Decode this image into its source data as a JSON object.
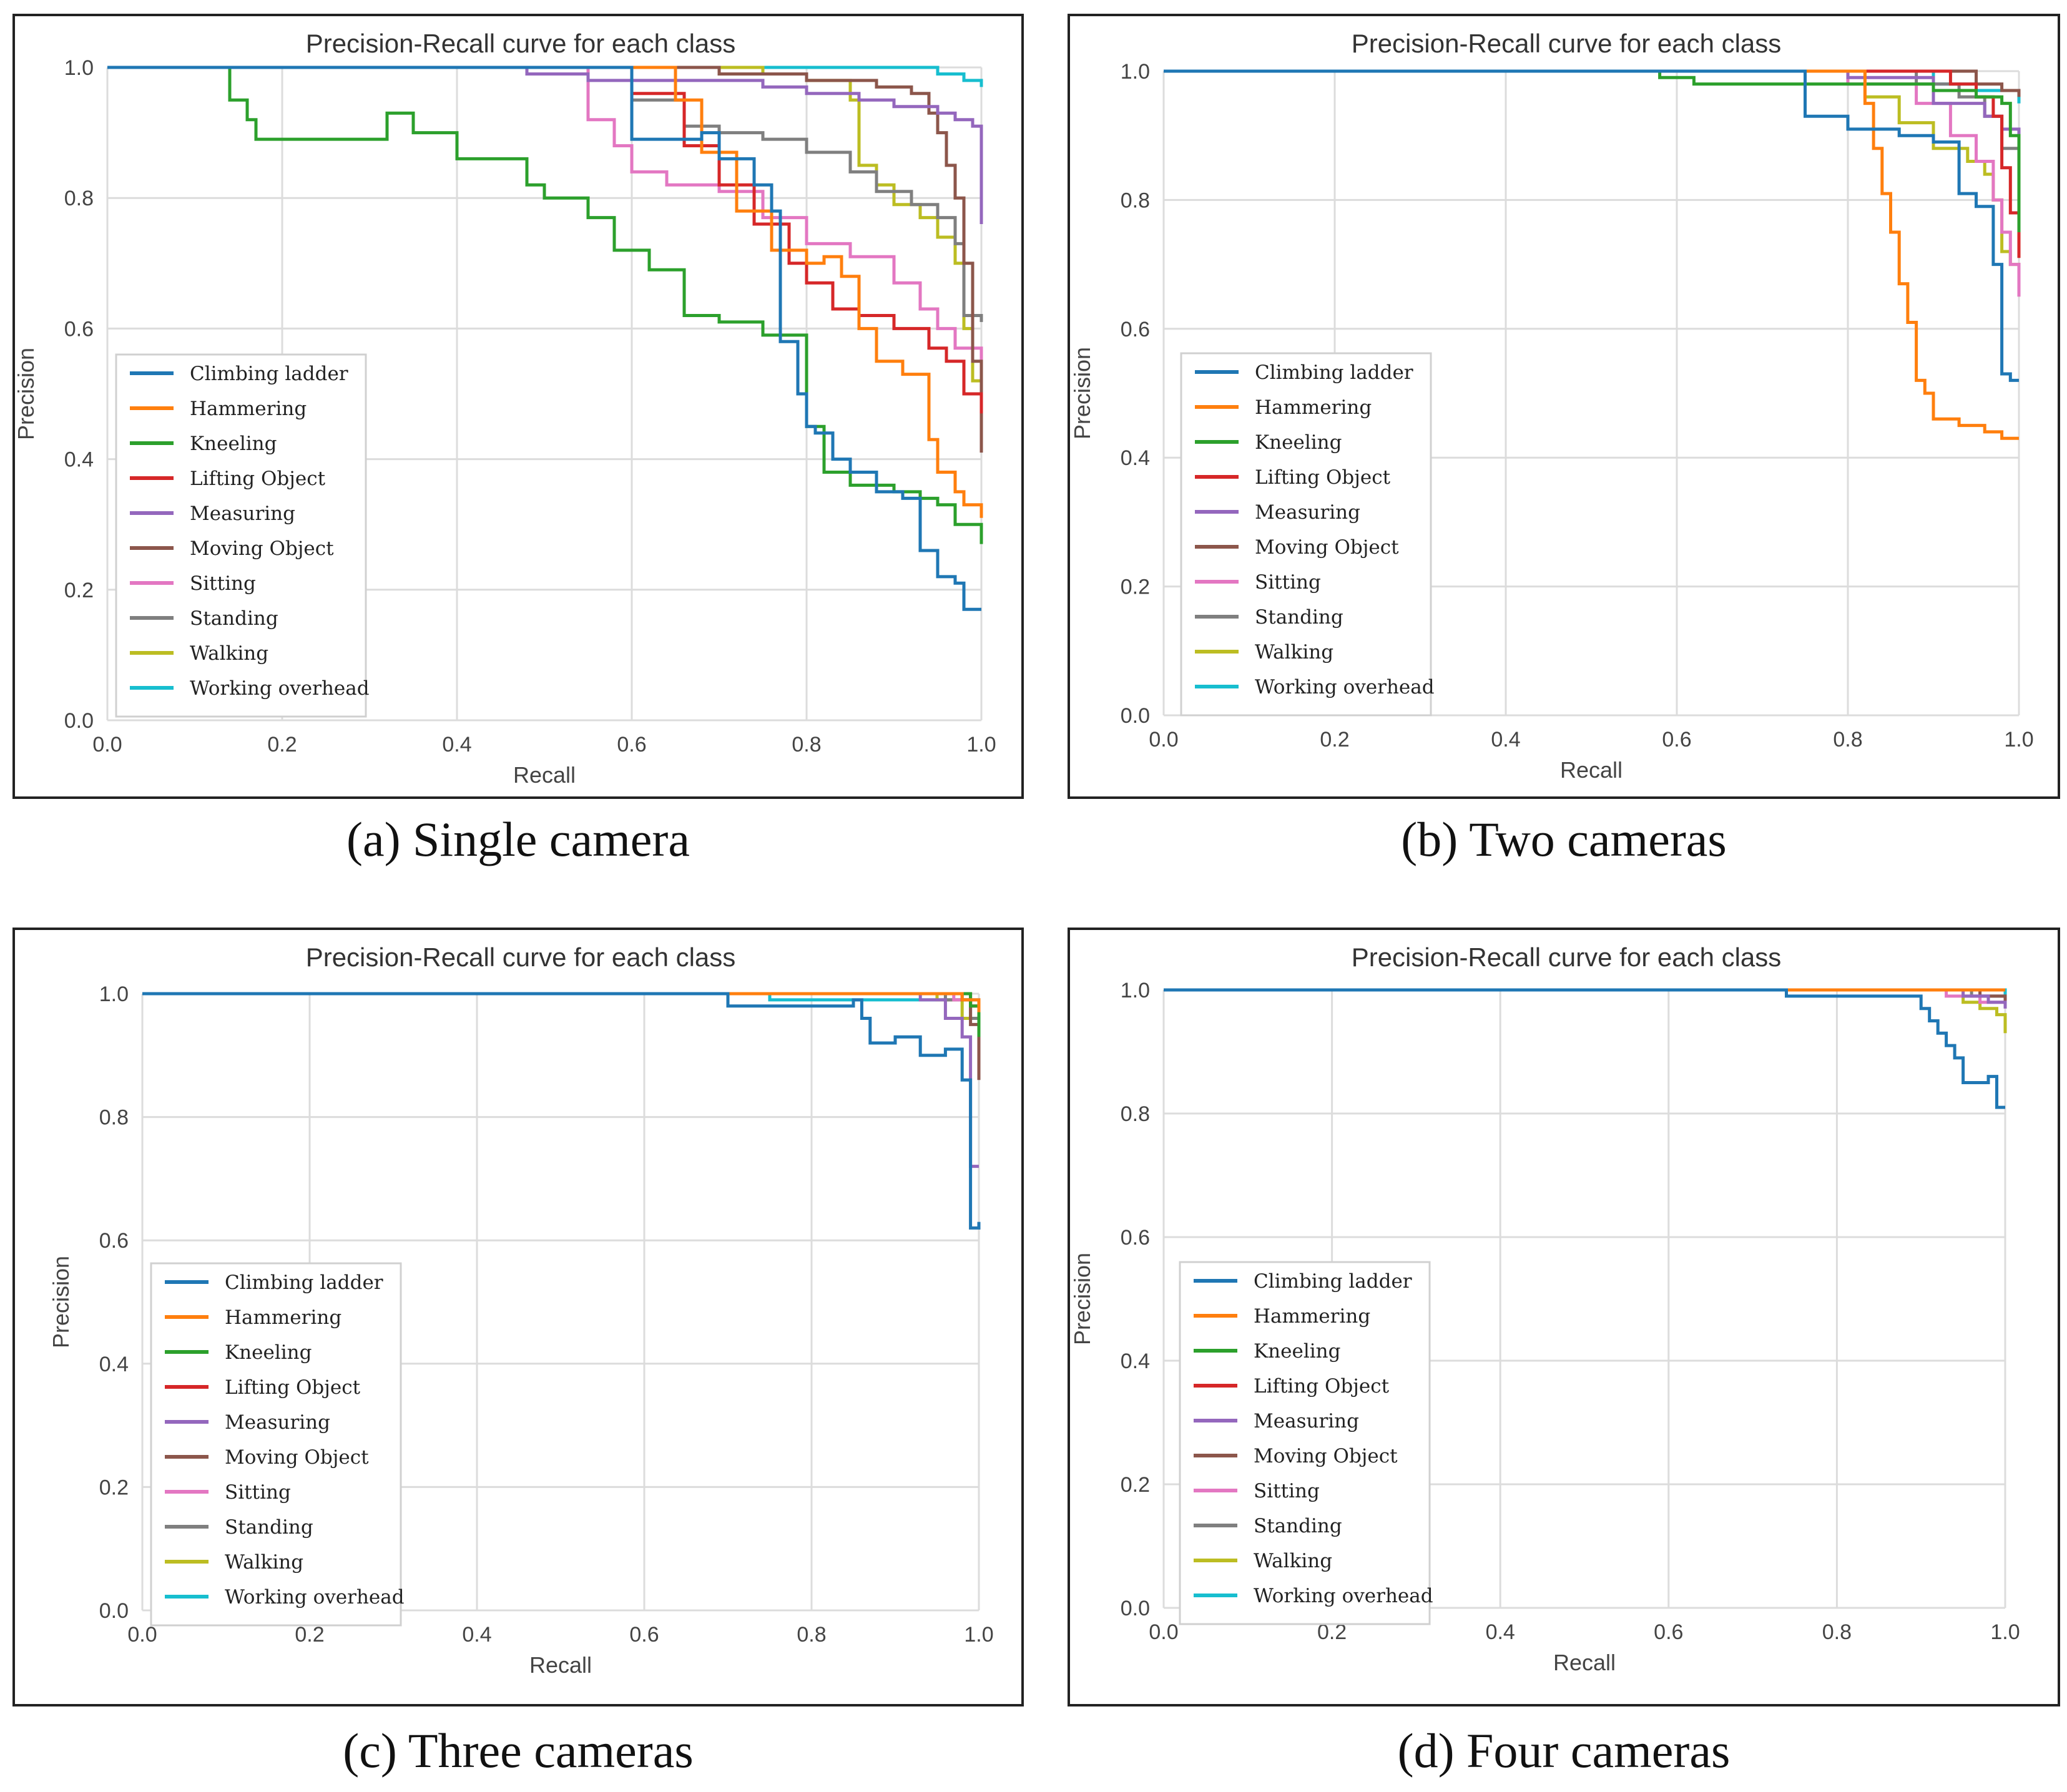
{
  "figure": {
    "captions": [
      "(a) Single camera",
      "(b) Two cameras",
      "(c) Three cameras",
      "(d) Four cameras"
    ]
  },
  "classes": [
    {
      "name": "Climbing ladder",
      "color": "#1f77b4"
    },
    {
      "name": "Hammering",
      "color": "#ff7f0e"
    },
    {
      "name": "Kneeling",
      "color": "#2ca02c"
    },
    {
      "name": "Lifting Object",
      "color": "#d62728"
    },
    {
      "name": "Measuring",
      "color": "#9467bd"
    },
    {
      "name": "Moving Object",
      "color": "#8c564b"
    },
    {
      "name": "Sitting",
      "color": "#e377c2"
    },
    {
      "name": "Standing",
      "color": "#7f7f7f"
    },
    {
      "name": "Walking",
      "color": "#bcbd22"
    },
    {
      "name": "Working overhead",
      "color": "#17becf"
    }
  ],
  "chart_data": [
    {
      "type": "line",
      "title": "Precision-Recall curve for each class",
      "xlabel": "Recall",
      "ylabel": "Precision",
      "xlim": [
        0,
        1
      ],
      "ylim": [
        0,
        1
      ],
      "xticks": [
        "0.0",
        "0.2",
        "0.4",
        "0.6",
        "0.8",
        "1.0"
      ],
      "yticks": [
        "0.0",
        "0.2",
        "0.4",
        "0.6",
        "0.8",
        "1.0"
      ],
      "grid": true,
      "legend": "center-left",
      "series": [
        {
          "name": "Climbing ladder",
          "x": [
            0,
            0.58,
            0.6,
            0.68,
            0.7,
            0.74,
            0.76,
            0.77,
            0.79,
            0.8,
            0.81,
            0.83,
            0.85,
            0.88,
            0.91,
            0.93,
            0.95,
            0.97,
            0.98,
            1.0
          ],
          "y": [
            1.0,
            1.0,
            0.89,
            0.9,
            0.86,
            0.82,
            0.78,
            0.58,
            0.5,
            0.45,
            0.44,
            0.4,
            0.38,
            0.35,
            0.34,
            0.26,
            0.22,
            0.21,
            0.17,
            0.17
          ]
        },
        {
          "name": "Hammering",
          "x": [
            0,
            0.64,
            0.65,
            0.68,
            0.72,
            0.76,
            0.8,
            0.82,
            0.84,
            0.86,
            0.88,
            0.91,
            0.94,
            0.95,
            0.97,
            0.98,
            1.0
          ],
          "y": [
            1.0,
            1.0,
            0.95,
            0.87,
            0.78,
            0.72,
            0.7,
            0.71,
            0.68,
            0.6,
            0.55,
            0.53,
            0.43,
            0.38,
            0.35,
            0.33,
            0.31
          ]
        },
        {
          "name": "Kneeling",
          "x": [
            0,
            0.13,
            0.14,
            0.16,
            0.17,
            0.32,
            0.35,
            0.4,
            0.48,
            0.5,
            0.55,
            0.58,
            0.62,
            0.66,
            0.7,
            0.75,
            0.8,
            0.82,
            0.85,
            0.9,
            0.93,
            0.95,
            0.97,
            1.0
          ],
          "y": [
            1.0,
            1.0,
            0.95,
            0.92,
            0.89,
            0.93,
            0.9,
            0.86,
            0.82,
            0.8,
            0.77,
            0.72,
            0.69,
            0.62,
            0.61,
            0.59,
            0.45,
            0.38,
            0.36,
            0.35,
            0.34,
            0.33,
            0.3,
            0.27
          ]
        },
        {
          "name": "Lifting Object",
          "x": [
            0,
            0.56,
            0.6,
            0.66,
            0.7,
            0.74,
            0.78,
            0.8,
            0.83,
            0.86,
            0.9,
            0.94,
            0.96,
            0.98,
            1.0
          ],
          "y": [
            1.0,
            1.0,
            0.96,
            0.88,
            0.82,
            0.76,
            0.7,
            0.67,
            0.63,
            0.62,
            0.6,
            0.57,
            0.55,
            0.5,
            0.47
          ]
        },
        {
          "name": "Measuring",
          "x": [
            0,
            0.48,
            0.55,
            0.7,
            0.75,
            0.8,
            0.86,
            0.9,
            0.95,
            0.97,
            0.99,
            1.0
          ],
          "y": [
            1.0,
            0.99,
            0.98,
            0.98,
            0.97,
            0.96,
            0.95,
            0.94,
            0.93,
            0.92,
            0.91,
            0.76
          ]
        },
        {
          "name": "Moving Object",
          "x": [
            0,
            0.7,
            0.8,
            0.88,
            0.92,
            0.94,
            0.95,
            0.96,
            0.97,
            0.98,
            0.99,
            1.0
          ],
          "y": [
            1.0,
            0.99,
            0.98,
            0.97,
            0.96,
            0.93,
            0.9,
            0.85,
            0.8,
            0.7,
            0.55,
            0.41
          ]
        },
        {
          "name": "Sitting",
          "x": [
            0,
            0.53,
            0.55,
            0.58,
            0.6,
            0.64,
            0.7,
            0.75,
            0.8,
            0.85,
            0.9,
            0.93,
            0.95,
            0.97,
            1.0
          ],
          "y": [
            1.0,
            1.0,
            0.92,
            0.88,
            0.84,
            0.82,
            0.81,
            0.77,
            0.73,
            0.71,
            0.67,
            0.63,
            0.6,
            0.57,
            0.53
          ]
        },
        {
          "name": "Standing",
          "x": [
            0,
            0.5,
            0.6,
            0.66,
            0.7,
            0.75,
            0.8,
            0.85,
            0.88,
            0.92,
            0.95,
            0.97,
            0.98,
            1.0
          ],
          "y": [
            1.0,
            1.0,
            0.95,
            0.91,
            0.9,
            0.89,
            0.87,
            0.84,
            0.81,
            0.79,
            0.77,
            0.73,
            0.62,
            0.61
          ]
        },
        {
          "name": "Walking",
          "x": [
            0,
            0.75,
            0.8,
            0.85,
            0.86,
            0.88,
            0.9,
            0.93,
            0.95,
            0.97,
            0.98,
            0.99,
            1.0
          ],
          "y": [
            1.0,
            0.99,
            0.98,
            0.95,
            0.85,
            0.82,
            0.79,
            0.77,
            0.74,
            0.7,
            0.6,
            0.52,
            0.49
          ]
        },
        {
          "name": "Working overhead",
          "x": [
            0,
            0.9,
            0.95,
            0.98,
            1.0
          ],
          "y": [
            1.0,
            1.0,
            0.99,
            0.98,
            0.97
          ]
        }
      ]
    },
    {
      "type": "line",
      "title": "Precision-Recall curve for each class",
      "xlabel": "Recall",
      "ylabel": "Precision",
      "xlim": [
        0,
        1
      ],
      "ylim": [
        0,
        1
      ],
      "xticks": [
        "0.0",
        "0.2",
        "0.4",
        "0.6",
        "0.8",
        "1.0"
      ],
      "yticks": [
        "0.0",
        "0.2",
        "0.4",
        "0.6",
        "0.8",
        "1.0"
      ],
      "grid": true,
      "legend": "center-left",
      "series": [
        {
          "name": "Climbing ladder",
          "x": [
            0,
            0.73,
            0.75,
            0.8,
            0.86,
            0.9,
            0.93,
            0.95,
            0.97,
            0.98,
            0.99,
            1.0
          ],
          "y": [
            1.0,
            1.0,
            0.93,
            0.91,
            0.9,
            0.89,
            0.81,
            0.79,
            0.7,
            0.53,
            0.52,
            0.52
          ]
        },
        {
          "name": "Hammering",
          "x": [
            0,
            0.81,
            0.82,
            0.83,
            0.84,
            0.85,
            0.86,
            0.87,
            0.88,
            0.89,
            0.9,
            0.93,
            0.96,
            0.98,
            1.0
          ],
          "y": [
            1.0,
            1.0,
            0.95,
            0.88,
            0.81,
            0.75,
            0.67,
            0.61,
            0.52,
            0.5,
            0.46,
            0.45,
            0.44,
            0.43,
            0.43
          ]
        },
        {
          "name": "Kneeling",
          "x": [
            0,
            0.57,
            0.58,
            0.62,
            0.8,
            0.9,
            0.95,
            0.98,
            0.99,
            1.0
          ],
          "y": [
            1.0,
            1.0,
            0.99,
            0.98,
            0.98,
            0.97,
            0.96,
            0.95,
            0.9,
            0.75
          ]
        },
        {
          "name": "Lifting Object",
          "x": [
            0,
            0.86,
            0.92,
            0.95,
            0.97,
            0.98,
            0.99,
            1.0
          ],
          "y": [
            1.0,
            1.0,
            0.98,
            0.96,
            0.93,
            0.85,
            0.78,
            0.71
          ]
        },
        {
          "name": "Measuring",
          "x": [
            0,
            0.8,
            0.9,
            0.96,
            0.98,
            1.0
          ],
          "y": [
            1.0,
            0.99,
            0.95,
            0.93,
            0.91,
            0.89
          ]
        },
        {
          "name": "Moving Object",
          "x": [
            0,
            0.88,
            0.95,
            0.98,
            1.0
          ],
          "y": [
            1.0,
            1.0,
            0.98,
            0.97,
            0.96
          ]
        },
        {
          "name": "Sitting",
          "x": [
            0,
            0.8,
            0.88,
            0.92,
            0.95,
            0.97,
            0.98,
            0.99,
            1.0
          ],
          "y": [
            1.0,
            0.98,
            0.95,
            0.9,
            0.86,
            0.8,
            0.75,
            0.7,
            0.65
          ]
        },
        {
          "name": "Standing",
          "x": [
            0,
            0.8,
            0.88,
            0.93,
            0.96,
            0.98,
            1.0
          ],
          "y": [
            1.0,
            1.0,
            0.98,
            0.96,
            0.93,
            0.88,
            0.82
          ]
        },
        {
          "name": "Walking",
          "x": [
            0,
            0.78,
            0.82,
            0.86,
            0.9,
            0.94,
            0.96,
            0.97,
            0.98,
            0.99,
            1.0
          ],
          "y": [
            1.0,
            1.0,
            0.96,
            0.92,
            0.88,
            0.86,
            0.84,
            0.8,
            0.72,
            0.7,
            0.69
          ]
        },
        {
          "name": "Working overhead",
          "x": [
            0,
            0.83,
            0.9,
            0.95,
            1.0
          ],
          "y": [
            1.0,
            1.0,
            0.98,
            0.97,
            0.95
          ]
        }
      ]
    },
    {
      "type": "line",
      "title": "Precision-Recall curve for each class",
      "xlabel": "Recall",
      "ylabel": "Precision",
      "xlim": [
        0,
        1
      ],
      "ylim": [
        0,
        1
      ],
      "xticks": [
        "0.0",
        "0.2",
        "0.4",
        "0.6",
        "0.8",
        "1.0"
      ],
      "yticks": [
        "0.0",
        "0.2",
        "0.4",
        "0.6",
        "0.8",
        "1.0"
      ],
      "grid": true,
      "legend": "center-left",
      "series": [
        {
          "name": "Climbing ladder",
          "x": [
            0,
            0.69,
            0.7,
            0.85,
            0.86,
            0.87,
            0.9,
            0.93,
            0.96,
            0.98,
            0.99,
            1.0
          ],
          "y": [
            1.0,
            1.0,
            0.98,
            0.99,
            0.96,
            0.92,
            0.93,
            0.9,
            0.91,
            0.86,
            0.62,
            0.63
          ]
        },
        {
          "name": "Hammering",
          "x": [
            0,
            0.98,
            1.0
          ],
          "y": [
            1.0,
            0.99,
            0.97
          ]
        },
        {
          "name": "Kneeling",
          "x": [
            0,
            0.97,
            0.99,
            1.0
          ],
          "y": [
            1.0,
            1.0,
            0.98,
            0.93
          ]
        },
        {
          "name": "Lifting Object",
          "x": [
            0,
            0.97,
            0.99,
            1.0
          ],
          "y": [
            1.0,
            1.0,
            0.98,
            0.96
          ]
        },
        {
          "name": "Measuring",
          "x": [
            0,
            0.93,
            0.96,
            0.98,
            0.99,
            1.0
          ],
          "y": [
            1.0,
            0.99,
            0.96,
            0.93,
            0.72,
            0.72
          ]
        },
        {
          "name": "Moving Object",
          "x": [
            0,
            0.98,
            0.99,
            1.0
          ],
          "y": [
            1.0,
            0.99,
            0.95,
            0.86
          ]
        },
        {
          "name": "Sitting",
          "x": [
            0,
            0.97,
            1.0
          ],
          "y": [
            1.0,
            0.99,
            0.97
          ]
        },
        {
          "name": "Standing",
          "x": [
            0,
            0.96,
            0.99,
            1.0
          ],
          "y": [
            1.0,
            0.99,
            0.96,
            0.88
          ]
        },
        {
          "name": "Walking",
          "x": [
            0,
            0.95,
            0.98,
            1.0
          ],
          "y": [
            1.0,
            0.99,
            0.96,
            0.94
          ]
        },
        {
          "name": "Working overhead",
          "x": [
            0,
            0.75,
            0.95,
            1.0
          ],
          "y": [
            1.0,
            0.99,
            0.99,
            0.98
          ]
        }
      ]
    },
    {
      "type": "line",
      "title": "Precision-Recall curve for each class",
      "xlabel": "Recall",
      "ylabel": "Precision",
      "xlim": [
        0,
        1
      ],
      "ylim": [
        0,
        1
      ],
      "xticks": [
        "0.0",
        "0.2",
        "0.4",
        "0.6",
        "0.8",
        "1.0"
      ],
      "yticks": [
        "0.0",
        "0.2",
        "0.4",
        "0.6",
        "0.8",
        "1.0"
      ],
      "grid": true,
      "legend": "center-left",
      "series": [
        {
          "name": "Climbing ladder",
          "x": [
            0,
            0.73,
            0.74,
            0.89,
            0.9,
            0.91,
            0.92,
            0.93,
            0.94,
            0.95,
            0.96,
            0.98,
            0.99,
            1.0
          ],
          "y": [
            1.0,
            1.0,
            0.99,
            0.99,
            0.97,
            0.95,
            0.93,
            0.91,
            0.89,
            0.85,
            0.85,
            0.86,
            0.81,
            0.81
          ]
        },
        {
          "name": "Hammering",
          "x": [
            0,
            1.0
          ],
          "y": [
            1.0,
            1.0
          ]
        },
        {
          "name": "Kneeling",
          "x": [
            0,
            1.0
          ],
          "y": [
            1.0,
            1.0
          ]
        },
        {
          "name": "Lifting Object",
          "x": [
            0,
            1.0
          ],
          "y": [
            1.0,
            1.0
          ]
        },
        {
          "name": "Measuring",
          "x": [
            0,
            0.95,
            0.98,
            1.0
          ],
          "y": [
            1.0,
            0.99,
            0.98,
            0.97
          ]
        },
        {
          "name": "Moving Object",
          "x": [
            0,
            0.97,
            1.0
          ],
          "y": [
            1.0,
            0.99,
            0.98
          ]
        },
        {
          "name": "Sitting",
          "x": [
            0,
            0.93,
            0.97,
            1.0
          ],
          "y": [
            1.0,
            0.99,
            0.98,
            0.97
          ]
        },
        {
          "name": "Standing",
          "x": [
            0,
            0.96,
            1.0
          ],
          "y": [
            1.0,
            0.99,
            0.98
          ]
        },
        {
          "name": "Walking",
          "x": [
            0,
            0.95,
            0.97,
            0.99,
            1.0
          ],
          "y": [
            1.0,
            0.98,
            0.97,
            0.96,
            0.93
          ]
        },
        {
          "name": "Working overhead",
          "x": [
            0,
            0.99,
            1.0
          ],
          "y": [
            1.0,
            1.0,
            0.99
          ]
        }
      ]
    }
  ]
}
